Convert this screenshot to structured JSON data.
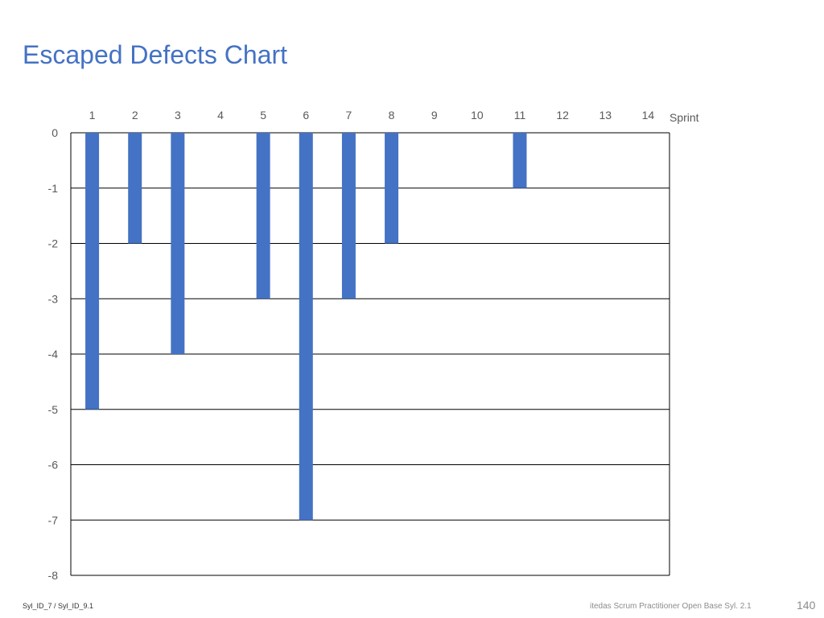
{
  "slide": {
    "title": "Escaped Defects Chart",
    "footer_left": "Syl_ID_7 / Syl_ID_9.1",
    "footer_center": "itedas Scrum Practitioner Open Base Syl. 2.1",
    "page_number": "140"
  },
  "chart_data": {
    "type": "bar",
    "title": "Escaped Defects Chart",
    "xlabel": "Sprint",
    "ylabel": "",
    "categories": [
      "1",
      "2",
      "3",
      "4",
      "5",
      "6",
      "7",
      "8",
      "9",
      "10",
      "11",
      "12",
      "13",
      "14"
    ],
    "values": [
      -5,
      -2,
      -4,
      0,
      -3,
      -7,
      -3,
      -2,
      0,
      0,
      -1,
      0,
      0,
      0
    ],
    "ylim": [
      -8,
      0
    ],
    "yticks": [
      0,
      -1,
      -2,
      -3,
      -4,
      -5,
      -6,
      -7,
      -8
    ],
    "x_axis_position": "top",
    "grid": true,
    "legend": "none",
    "colors": {
      "bar": "#4472c4",
      "grid": "#000000",
      "text": "#595959"
    }
  }
}
